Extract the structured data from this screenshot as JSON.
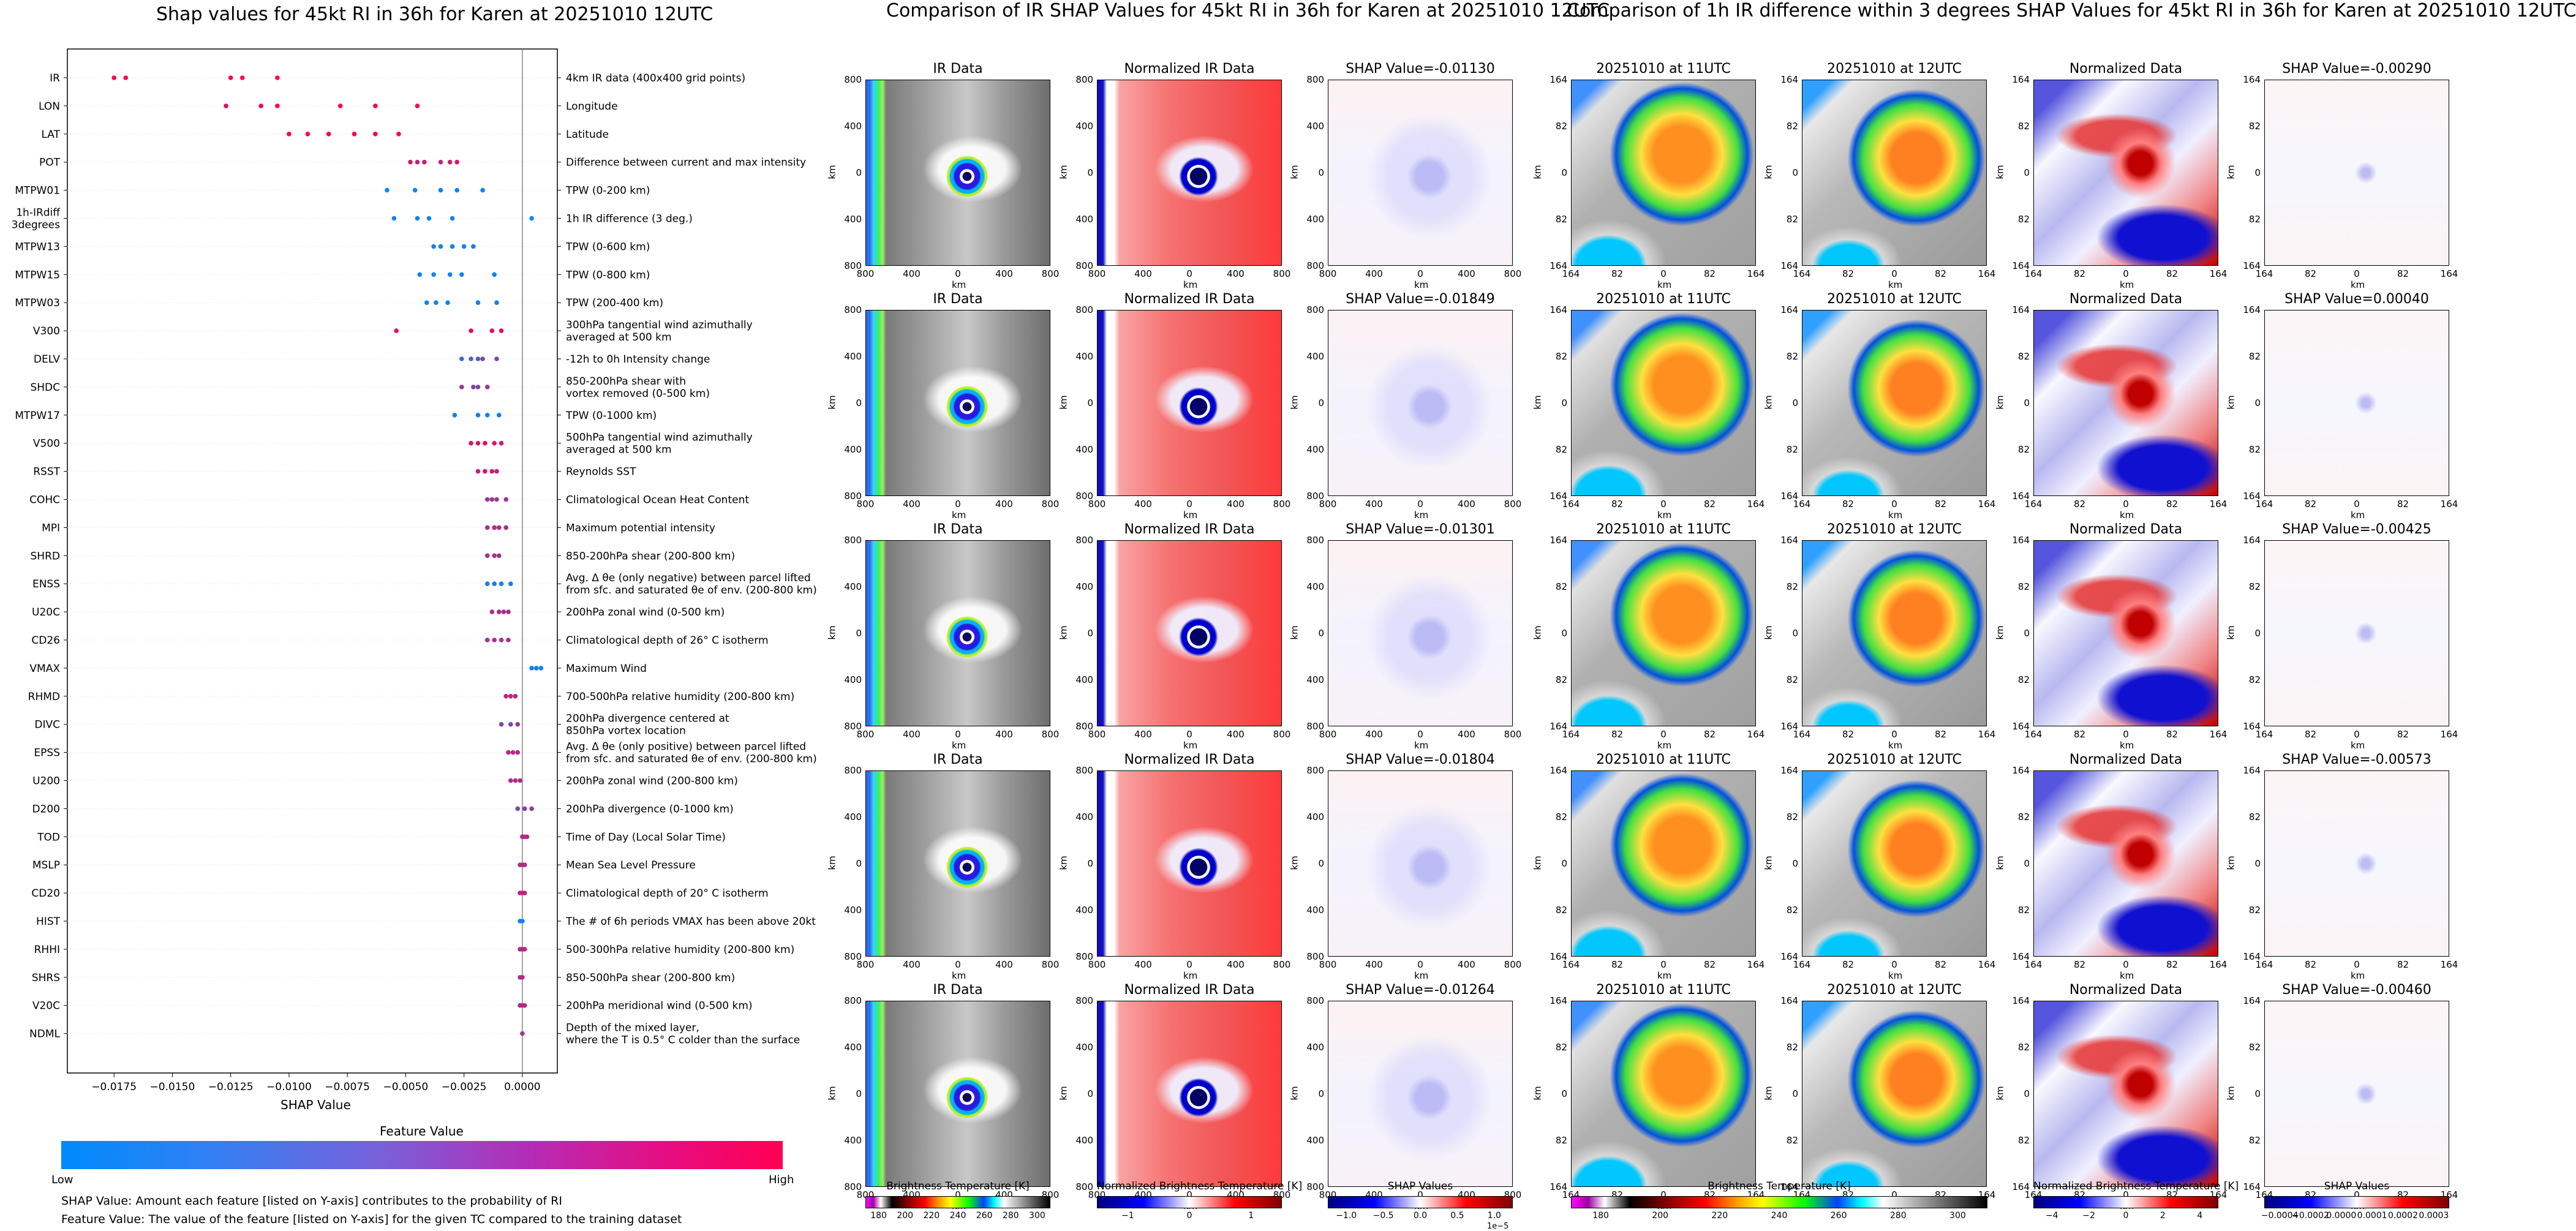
{
  "left": {
    "title": "Shap values for 45kt RI in 36h for Karen at 20251010 12UTC",
    "xlabel": "SHAP Value",
    "xticks": [
      "-0.0175",
      "-0.0150",
      "-0.0125",
      "-0.0100",
      "-0.0075",
      "-0.0050",
      "-0.0025",
      "0.0000"
    ],
    "colorbar_title": "Feature Value",
    "colorbar_low": "Low",
    "colorbar_high": "High",
    "note1": "SHAP Value: Amount each feature [listed on Y-axis] contributes to the probability of RI",
    "note2": "Feature Value: The value of the feature [listed on Y-axis] for the given TC compared to the training dataset"
  },
  "chart_data": [
    {
      "type": "scatter",
      "title": "Shap values for 45kt RI in 36h for Karen at 20251010 12UTC",
      "xlabel": "SHAP Value",
      "xlim": [
        -0.0195,
        0.0015
      ],
      "features": [
        {
          "name": "IR",
          "desc": [
            "4km IR data (400x400 grid points)"
          ],
          "points": [
            [
              -0.0175,
              1
            ],
            [
              -0.017,
              1
            ],
            [
              -0.0125,
              0.95
            ],
            [
              -0.012,
              1
            ],
            [
              -0.0105,
              1
            ]
          ]
        },
        {
          "name": "LON",
          "desc": [
            "Longitude"
          ],
          "points": [
            [
              -0.0127,
              0.9
            ],
            [
              -0.0112,
              0.95
            ],
            [
              -0.0105,
              1
            ],
            [
              -0.0078,
              1
            ],
            [
              -0.0063,
              1
            ],
            [
              -0.0045,
              1
            ]
          ]
        },
        {
          "name": "LAT",
          "desc": [
            "Latitude"
          ],
          "points": [
            [
              -0.01,
              1
            ],
            [
              -0.0092,
              1
            ],
            [
              -0.0083,
              1
            ],
            [
              -0.0072,
              1
            ],
            [
              -0.0063,
              1
            ],
            [
              -0.0053,
              1
            ]
          ]
        },
        {
          "name": "POT",
          "desc": [
            "Difference between current and max intensity"
          ],
          "points": [
            [
              -0.0048,
              0.85
            ],
            [
              -0.0045,
              0.75
            ],
            [
              -0.0042,
              0.8
            ],
            [
              -0.0035,
              0.75
            ],
            [
              -0.0031,
              0.8
            ],
            [
              -0.0028,
              0.85
            ]
          ]
        },
        {
          "name": "MTPW01",
          "desc": [
            "TPW (0-200 km)"
          ],
          "points": [
            [
              -0.0058,
              0.0
            ],
            [
              -0.0046,
              0.05
            ],
            [
              -0.0035,
              0.05
            ],
            [
              -0.0028,
              0.05
            ],
            [
              -0.0017,
              0.05
            ]
          ]
        },
        {
          "name": "1h-IRdiff\n3degrees",
          "desc": [
            "1h IR difference (3 deg.)"
          ],
          "points": [
            [
              -0.0055,
              0.05
            ],
            [
              -0.0045,
              0.05
            ],
            [
              -0.004,
              0.05
            ],
            [
              -0.003,
              0.05
            ],
            [
              0.0004,
              0.0
            ]
          ]
        },
        {
          "name": "MTPW13",
          "desc": [
            "TPW (0-600 km)"
          ],
          "points": [
            [
              -0.0038,
              0.05
            ],
            [
              -0.0035,
              0.05
            ],
            [
              -0.003,
              0.05
            ],
            [
              -0.0025,
              0.05
            ],
            [
              -0.0021,
              0.05
            ]
          ]
        },
        {
          "name": "MTPW15",
          "desc": [
            "TPW (0-800 km)"
          ],
          "points": [
            [
              -0.0044,
              0.05
            ],
            [
              -0.0038,
              0.05
            ],
            [
              -0.0031,
              0.05
            ],
            [
              -0.0026,
              0.05
            ],
            [
              -0.0012,
              0.05
            ]
          ]
        },
        {
          "name": "MTPW03",
          "desc": [
            "TPW (200-400 km)"
          ],
          "points": [
            [
              -0.0041,
              0.05
            ],
            [
              -0.0037,
              0.05
            ],
            [
              -0.0032,
              0.05
            ],
            [
              -0.0019,
              0.05
            ],
            [
              -0.0011,
              0.05
            ]
          ]
        },
        {
          "name": "V300",
          "desc": [
            "300hPa tangential wind azimuthally",
            "averaged at 500 km"
          ],
          "points": [
            [
              -0.0054,
              0.9
            ],
            [
              -0.0022,
              0.95
            ],
            [
              -0.0013,
              0.95
            ],
            [
              -0.0009,
              0.9
            ]
          ]
        },
        {
          "name": "DELV",
          "desc": [
            "-12h to 0h Intensity change"
          ],
          "points": [
            [
              -0.0026,
              0.2
            ],
            [
              -0.0022,
              0.3
            ],
            [
              -0.0019,
              0.4
            ],
            [
              -0.0017,
              0.5
            ],
            [
              -0.0011,
              0.5
            ]
          ]
        },
        {
          "name": "SHDC",
          "desc": [
            "850-200hPa shear with",
            "vortex removed (0-500 km)"
          ],
          "points": [
            [
              -0.0026,
              0.6
            ],
            [
              -0.0021,
              0.55
            ],
            [
              -0.0019,
              0.5
            ],
            [
              -0.0015,
              0.6
            ]
          ]
        },
        {
          "name": "MTPW17",
          "desc": [
            "TPW (0-1000 km)"
          ],
          "points": [
            [
              -0.0029,
              0.05
            ],
            [
              -0.0019,
              0.1
            ],
            [
              -0.0015,
              0.05
            ],
            [
              -0.001,
              0.05
            ]
          ]
        },
        {
          "name": "V500",
          "desc": [
            "500hPa tangential wind azimuthally",
            "averaged at 500 km"
          ],
          "points": [
            [
              -0.0022,
              0.9
            ],
            [
              -0.0019,
              0.85
            ],
            [
              -0.0016,
              0.9
            ],
            [
              -0.0012,
              0.85
            ],
            [
              -0.0009,
              0.8
            ]
          ]
        },
        {
          "name": "RSST",
          "desc": [
            "Reynolds SST"
          ],
          "points": [
            [
              -0.0019,
              0.8
            ],
            [
              -0.0016,
              0.85
            ],
            [
              -0.0013,
              0.8
            ],
            [
              -0.0011,
              0.75
            ]
          ]
        },
        {
          "name": "COHC",
          "desc": [
            "Climatological Ocean Heat Content"
          ],
          "points": [
            [
              -0.0015,
              0.6
            ],
            [
              -0.0013,
              0.6
            ],
            [
              -0.0011,
              0.6
            ],
            [
              -0.0007,
              0.6
            ]
          ]
        },
        {
          "name": "MPI",
          "desc": [
            "Maximum potential intensity"
          ],
          "points": [
            [
              -0.0015,
              0.7
            ],
            [
              -0.0012,
              0.7
            ],
            [
              -0.001,
              0.7
            ],
            [
              -0.0007,
              0.7
            ]
          ]
        },
        {
          "name": "SHRD",
          "desc": [
            "850-200hPa shear (200-800 km)"
          ],
          "points": [
            [
              -0.0015,
              0.65
            ],
            [
              -0.0012,
              0.65
            ],
            [
              -0.001,
              0.65
            ]
          ]
        },
        {
          "name": "ENSS",
          "desc": [
            "Avg. Δ θe (only negative) between parcel lifted",
            "from sfc. and saturated θe of env. (200-800 km)"
          ],
          "points": [
            [
              -0.0015,
              0.1
            ],
            [
              -0.0012,
              0.1
            ],
            [
              -0.0009,
              0.1
            ],
            [
              -0.0005,
              0.1
            ]
          ]
        },
        {
          "name": "U20C",
          "desc": [
            "200hPa zonal wind (0-500 km)"
          ],
          "points": [
            [
              -0.0013,
              0.65
            ],
            [
              -0.001,
              0.65
            ],
            [
              -0.0008,
              0.65
            ],
            [
              -0.0006,
              0.65
            ]
          ]
        },
        {
          "name": "CD26",
          "desc": [
            "Climatological depth of 26° C isotherm"
          ],
          "points": [
            [
              -0.0015,
              0.65
            ],
            [
              -0.0012,
              0.65
            ],
            [
              -0.0009,
              0.65
            ],
            [
              -0.0006,
              0.65
            ]
          ]
        },
        {
          "name": "VMAX",
          "desc": [
            "Maximum Wind"
          ],
          "points": [
            [
              0.0004,
              0.05
            ],
            [
              0.0006,
              0.05
            ],
            [
              0.0008,
              0.05
            ]
          ]
        },
        {
          "name": "RHMD",
          "desc": [
            "700-500hPa relative humidity (200-800 km)"
          ],
          "points": [
            [
              -0.0007,
              0.75
            ],
            [
              -0.0005,
              0.75
            ],
            [
              -0.0003,
              0.75
            ]
          ]
        },
        {
          "name": "DIVC",
          "desc": [
            "200hPa divergence centered at",
            "850hPa vortex location"
          ],
          "points": [
            [
              -0.0009,
              0.5
            ],
            [
              -0.0005,
              0.5
            ],
            [
              -0.0002,
              0.6
            ]
          ]
        },
        {
          "name": "EPSS",
          "desc": [
            "Avg. Δ θe (only positive) between parcel lifted",
            "from sfc. and saturated θe of env. (200-800 km)"
          ],
          "points": [
            [
              -0.0006,
              0.7
            ],
            [
              -0.0004,
              0.7
            ],
            [
              -0.0002,
              0.7
            ]
          ]
        },
        {
          "name": "U200",
          "desc": [
            "200hPa zonal wind (200-800 km)"
          ],
          "points": [
            [
              -0.0005,
              0.7
            ],
            [
              -0.0003,
              0.7
            ],
            [
              -0.0001,
              0.7
            ]
          ]
        },
        {
          "name": "D200",
          "desc": [
            "200hPa divergence (0-1000 km)"
          ],
          "points": [
            [
              -0.0002,
              0.5
            ],
            [
              0.0001,
              0.5
            ],
            [
              0.0004,
              0.6
            ]
          ]
        },
        {
          "name": "TOD",
          "desc": [
            "Time of Day (Local Solar Time)"
          ],
          "points": [
            [
              0.0,
              0.7
            ],
            [
              0.0001,
              0.7
            ],
            [
              0.0002,
              0.7
            ]
          ]
        },
        {
          "name": "MSLP",
          "desc": [
            "Mean Sea Level Pressure"
          ],
          "points": [
            [
              -0.0001,
              0.7
            ],
            [
              0.0,
              0.7
            ],
            [
              0.0001,
              0.7
            ]
          ]
        },
        {
          "name": "CD20",
          "desc": [
            "Climatological depth of 20° C isotherm"
          ],
          "points": [
            [
              -0.0001,
              0.75
            ],
            [
              0.0,
              0.75
            ],
            [
              0.0001,
              0.75
            ]
          ]
        },
        {
          "name": "HIST",
          "desc": [
            "The # of 6h periods VMAX has been above 20kt"
          ],
          "points": [
            [
              -0.0001,
              0.05
            ],
            [
              0.0,
              0.05
            ]
          ]
        },
        {
          "name": "RHHI",
          "desc": [
            "500-300hPa relative humidity (200-800 km)"
          ],
          "points": [
            [
              -0.0001,
              0.7
            ],
            [
              0.0,
              0.7
            ],
            [
              0.0001,
              0.7
            ]
          ]
        },
        {
          "name": "SHRS",
          "desc": [
            "850-500hPa shear (200-800 km)"
          ],
          "points": [
            [
              -0.0001,
              0.7
            ],
            [
              0.0,
              0.7
            ]
          ]
        },
        {
          "name": "V20C",
          "desc": [
            "200hPa meridional wind (0-500 km)"
          ],
          "points": [
            [
              -0.0001,
              0.7
            ],
            [
              0.0,
              0.7
            ],
            [
              0.0001,
              0.7
            ]
          ]
        },
        {
          "name": "NDML",
          "desc": [
            "Depth of the mixed layer,",
            "where the T is 0.5° C colder than the surface"
          ],
          "points": [
            [
              0.0,
              0.6
            ]
          ]
        }
      ]
    },
    {
      "type": "heatmap",
      "title": "Comparison of IR SHAP Values for 45kt RI in 36h for Karen at 20251010 12UTC",
      "columns": [
        "IR Data",
        "Normalized IR Data",
        "SHAP Value"
      ],
      "shap_values": [
        "-0.01130",
        "-0.01849",
        "-0.01301",
        "-0.01804",
        "-0.01264"
      ],
      "ticks": [
        "800",
        "400",
        "0",
        "400",
        "800"
      ],
      "axis_label": "km"
    },
    {
      "type": "heatmap",
      "title": "Comparison of 1h IR difference within 3 degrees SHAP Values for 45kt RI in 36h for Karen at 20251010 12UTC",
      "columns": [
        "20251010 at 11UTC",
        "20251010 at 12UTC",
        "Normalized Data",
        "SHAP Value"
      ],
      "shap_values": [
        "-0.00290",
        "0.00040",
        "-0.00425",
        "-0.00573",
        "-0.00460"
      ],
      "ticks": [
        "164",
        "82",
        "0",
        "82",
        "164"
      ],
      "axis_label": "km"
    }
  ],
  "mid": {
    "title": "Comparison of IR SHAP Values for 45kt RI in 36h for Karen at 20251010 12UTC",
    "col_ir": "IR Data",
    "col_norm": "Normalized IR Data",
    "shap_prefix": "SHAP Value=",
    "shap_values": [
      "-0.01130",
      "-0.01849",
      "-0.01301",
      "-0.01804",
      "-0.01264"
    ],
    "ticks": [
      "800",
      "400",
      "0",
      "400",
      "800"
    ],
    "km": "km",
    "cb1_label": "Brightness Temperature [K]",
    "cb1_ticks": [
      "180",
      "200",
      "220",
      "240",
      "260",
      "280",
      "300"
    ],
    "cb2_label": "Normalized Brightness Temperature [K]",
    "cb2_ticks": [
      "−1",
      "0",
      "1"
    ],
    "cb3_label": "SHAP Values",
    "cb3_ticks": [
      "−1.0",
      "−0.5",
      "0.0",
      "0.5",
      "1.0"
    ],
    "cb3_exp": "1e−5"
  },
  "right": {
    "title": "Comparison of 1h IR difference within 3 degrees SHAP Values for 45kt RI in 36h for Karen at 20251010 12UTC",
    "col_11": "20251010 at 11UTC",
    "col_12": "20251010 at 12UTC",
    "col_norm": "Normalized Data",
    "shap_prefix": "SHAP Value=",
    "shap_values": [
      "-0.00290",
      "0.00040",
      "-0.00425",
      "-0.00573",
      "-0.00460"
    ],
    "ticks": [
      "164",
      "82",
      "0",
      "82",
      "164"
    ],
    "km": "km",
    "cb1_label": "Brightness Temperature [K]",
    "cb1_ticks": [
      "180",
      "200",
      "220",
      "240",
      "260",
      "280",
      "300"
    ],
    "cb2_label": "Normalized Brightness Temperature [K]",
    "cb2_ticks": [
      "−4",
      "−2",
      "0",
      "2",
      "4"
    ],
    "cb3_label": "SHAP Values",
    "cb3_ticks": [
      "−0.0004",
      "−0.0002",
      "0.0000",
      "0.0001",
      "0.0002",
      "0.0003"
    ]
  },
  "colors": {
    "low": "#008afb",
    "high": "#ff0052"
  }
}
